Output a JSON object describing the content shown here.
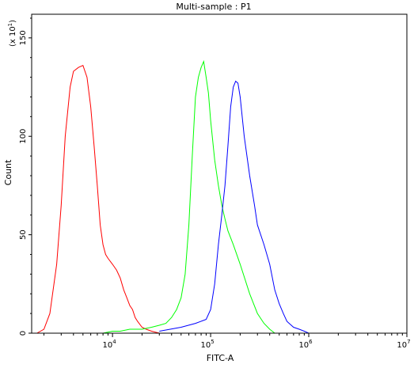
{
  "chart_data": {
    "type": "line",
    "title": "Multi-sample : P1",
    "xlabel": "FITC-A",
    "ylabel": "Count",
    "y_multiplier": "(x 10",
    "y_multiplier_exp": "1",
    "x_scale": "log",
    "xlim": [
      1500,
      10000000
    ],
    "ylim": [
      0,
      162
    ],
    "x_ticks": [
      {
        "value": 10000,
        "base": "10",
        "exp": "4"
      },
      {
        "value": 100000,
        "base": "10",
        "exp": "5"
      },
      {
        "value": 1000000,
        "base": "10",
        "exp": "6"
      },
      {
        "value": 10000000,
        "base": "10",
        "exp": "7"
      }
    ],
    "y_ticks": [
      {
        "value": 0,
        "label": "0"
      },
      {
        "value": 50,
        "label": "50"
      },
      {
        "value": 100,
        "label": "100"
      },
      {
        "value": 150,
        "label": "150"
      }
    ],
    "grid": false,
    "series": [
      {
        "color": "#ff0000",
        "x": [
          1700,
          2000,
          2300,
          2700,
          3000,
          3300,
          3700,
          4000,
          4500,
          5000,
          5500,
          6000,
          6500,
          7000,
          7500,
          8000,
          8500,
          9000,
          10000,
          11000,
          12000,
          13000,
          14000,
          15000,
          16000,
          17000,
          18000,
          20000,
          22000,
          25000,
          30000
        ],
        "y": [
          0,
          2,
          10,
          35,
          65,
          100,
          125,
          133,
          135,
          136,
          130,
          115,
          95,
          75,
          55,
          45,
          40,
          38,
          35,
          32,
          28,
          22,
          18,
          14,
          12,
          8,
          6,
          3,
          2,
          1,
          0
        ]
      },
      {
        "color": "#00ff00",
        "x": [
          8000,
          10000,
          12000,
          15000,
          20000,
          25000,
          30000,
          35000,
          40000,
          45000,
          50000,
          55000,
          60000,
          65000,
          70000,
          75000,
          80000,
          85000,
          90000,
          95000,
          100000,
          110000,
          120000,
          130000,
          140000,
          150000,
          170000,
          200000,
          250000,
          300000,
          350000,
          400000,
          450000
        ],
        "y": [
          0,
          1,
          1,
          2,
          2,
          3,
          4,
          5,
          8,
          12,
          18,
          30,
          55,
          90,
          120,
          130,
          135,
          138,
          130,
          122,
          108,
          88,
          75,
          65,
          58,
          52,
          45,
          35,
          20,
          10,
          5,
          2,
          0
        ]
      },
      {
        "color": "#0000ff",
        "x": [
          30000,
          50000,
          70000,
          90000,
          100000,
          110000,
          120000,
          130000,
          140000,
          150000,
          160000,
          170000,
          180000,
          190000,
          200000,
          220000,
          250000,
          280000,
          300000,
          350000,
          400000,
          450000,
          500000,
          550000,
          600000,
          700000,
          800000,
          900000,
          1000000
        ],
        "y": [
          1,
          3,
          5,
          7,
          12,
          25,
          45,
          60,
          75,
          95,
          115,
          125,
          128,
          127,
          120,
          100,
          80,
          65,
          55,
          45,
          35,
          22,
          15,
          10,
          6,
          3,
          2,
          1,
          0
        ]
      }
    ]
  }
}
